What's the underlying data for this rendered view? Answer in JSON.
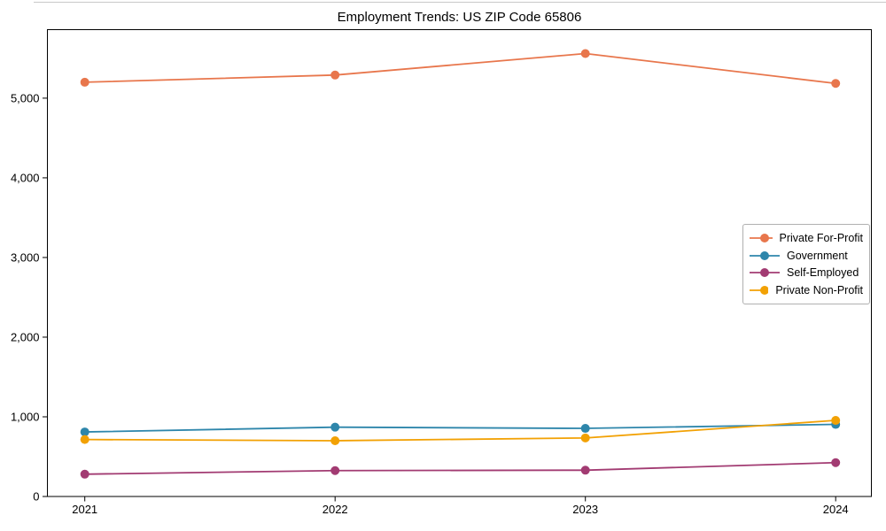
{
  "title": "Employment Trends: US ZIP Code 65806",
  "chart_data": {
    "type": "line",
    "title": "Employment Trends: US ZIP Code 65806",
    "xlabel": "",
    "ylabel": "",
    "x": [
      2021,
      2022,
      2023,
      2024
    ],
    "xtick_labels": [
      "2021",
      "2022",
      "2023",
      "2024"
    ],
    "yticks": [
      0,
      1000,
      2000,
      3000,
      4000,
      5000
    ],
    "ytick_labels": [
      "0",
      "1,000",
      "2,000",
      "3,000",
      "4,000",
      "5,000"
    ],
    "ylim": [
      0,
      5860
    ],
    "grid": false,
    "marker": "circle",
    "legend_position": "center-right",
    "series": [
      {
        "name": "Private For-Profit",
        "color": "#E8764C",
        "values": [
          5200,
          5290,
          5560,
          5185
        ]
      },
      {
        "name": "Government",
        "color": "#2E86AB",
        "values": [
          810,
          870,
          855,
          905
        ]
      },
      {
        "name": "Self-Employed",
        "color": "#A23B72",
        "values": [
          280,
          325,
          330,
          425
        ]
      },
      {
        "name": "Private Non-Profit",
        "color": "#F2A104",
        "values": [
          715,
          700,
          735,
          955
        ]
      }
    ],
    "colors": {
      "spine": "#000000",
      "background": "#ffffff",
      "legend_border": "#b0b0b0"
    }
  }
}
